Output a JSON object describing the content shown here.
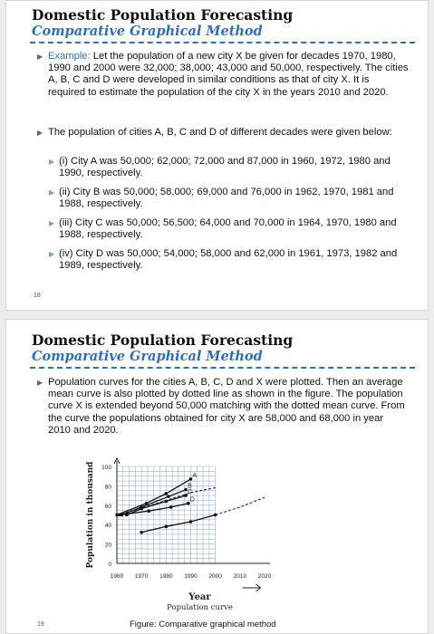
{
  "slide1": {
    "title": "Domestic Population Forecasting",
    "subtitle": "Comparative Graphical Method",
    "example_label": "Example:",
    "example_text": " Let the population of a new city X be given for decades 1970, 1980, 1990 and 2000 were 32,000; 38,000; 43,000 and 50,000, respectively. The cities A, B, C and D were developed in similar conditions as that of city X. It is required to estimate the population of the city X in the years 2010 and 2020.",
    "intro": "The population of cities A, B, C and D of different decades were given below:",
    "items": [
      "(i) City A was 50,000; 62,000; 72,000 and 87,000 in 1960, 1972, 1980 and 1990, respectively.",
      "(ii) City B was 50,000; 58,000; 69,000 and 76,000 in 1962, 1970, 1981 and 1988, respectively.",
      "(iii) City C was 50,000; 56,500; 64,000 and 70,000 in 1964, 1970, 1980 and 1988, respectively.",
      "(iv) City D was 50,000; 54,000; 58,000 and 62,000 in 1961, 1973, 1982 and 1989, respectively."
    ],
    "page": "18"
  },
  "slide2": {
    "title": "Domestic Population Forecasting",
    "subtitle": "Comparative Graphical Method",
    "text": "Population curves for the cities A, B, C, D and X were plotted. Then an average mean curve is also plotted by dotted line as shown in the figure. The population curve X is extended beyond 50,000 matching with the dotted mean curve. From the curve the populations obtained for city X are 58,000 and 68,000 in year 2010 and 2020.",
    "page": "19",
    "figure_caption": "Figure: Comparative graphical method"
  },
  "chart_data": {
    "type": "line",
    "ylabel": "Population in thousand",
    "xlabel_lines": [
      "Year",
      "Population curve"
    ],
    "xlim": [
      1960,
      2020
    ],
    "ylim": [
      0,
      100
    ],
    "x_ticks": [
      1960,
      1970,
      1980,
      1990,
      2000,
      2010,
      2020
    ],
    "y_ticks": [
      0,
      20,
      40,
      60,
      80,
      100
    ],
    "grid": true,
    "series": [
      {
        "name": "A",
        "x": [
          1960,
          1972,
          1980,
          1990
        ],
        "y": [
          50,
          62,
          72,
          87
        ],
        "style": "solid"
      },
      {
        "name": "B",
        "x": [
          1962,
          1970,
          1981,
          1988
        ],
        "y": [
          50,
          58,
          69,
          76
        ],
        "style": "solid"
      },
      {
        "name": "C",
        "x": [
          1964,
          1970,
          1980,
          1988
        ],
        "y": [
          50,
          56.5,
          64,
          70
        ],
        "style": "solid"
      },
      {
        "name": "D",
        "x": [
          1961,
          1973,
          1982,
          1989
        ],
        "y": [
          50,
          54,
          58,
          62
        ],
        "style": "solid"
      },
      {
        "name": "",
        "x": [
          1960,
          1970,
          1980,
          1990,
          2000
        ],
        "y": [
          50,
          57,
          65,
          73,
          78
        ],
        "style": "dotted"
      },
      {
        "name": "",
        "x": [
          1970,
          1980,
          1990,
          2000
        ],
        "y": [
          32,
          38,
          43,
          50
        ],
        "style": "solid"
      },
      {
        "name": "",
        "x": [
          2000,
          2010,
          2020
        ],
        "y": [
          50,
          58,
          68
        ],
        "style": "dotted"
      }
    ]
  }
}
